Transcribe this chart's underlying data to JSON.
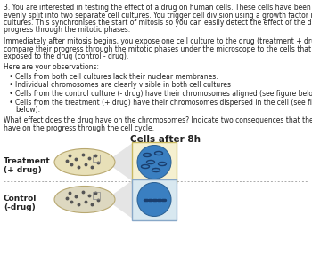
{
  "title": "Cells after 8h",
  "background_color": "#ffffff",
  "paragraph1": "3. You are interested in testing the effect of a drug on human cells. These cells have been sampled and evenly split into two separate cell cultures. You trigger cell division using a growth factor in both cell cultures. This synchronises the start of mitosis so you can easily detect the effect of the drug on the progress through the mitotic phases.",
  "paragraph2": "Immediately after mitosis begins, you expose one cell culture to the drug (treatment + drug) and compare their progress through the mitotic phases under the microscope to the cells that are not exposed to the drug (control - drug).",
  "paragraph3": "Here are your observations:",
  "bullets": [
    "Cells from both cell cultures lack their nuclear membranes.",
    "Individual chromosomes are clearly visible in both cell cultures",
    "Cells from the control culture (- drug) have their chromosomes aligned (see figure below)",
    "Cells from the treatment (+ drug) have their chromosomes dispersed in the cell (see figure below)."
  ],
  "question": "What effect does the drug have on the chromosomes? Indicate two consequences that the drug will have on the progress through the cell cycle.",
  "treatment_label_line1": "Treatment",
  "treatment_label_line2": "(+ drug)",
  "control_label_line1": "Control",
  "control_label_line2": "(-drug)",
  "treatment_box_color": "#f5f0d0",
  "treatment_box_edge": "#c8b860",
  "control_box_color": "#d8e8f0",
  "control_box_edge": "#88a8c8",
  "petri_face_color": "#e8e0b8",
  "petri_edge_color": "#b8a870",
  "cell_face_color": "#3a7fc1",
  "cell_edge_color": "#2a5f91",
  "chrom_color": "#1a3f6f",
  "dot_color": "#555555",
  "connector_color": "#bbbbbb",
  "divider_color": "#aaaaaa",
  "text_color": "#222222",
  "label_color": "#222222",
  "text_fontsize": 5.5,
  "label_fontsize": 6.5,
  "title_fontsize": 7.5
}
